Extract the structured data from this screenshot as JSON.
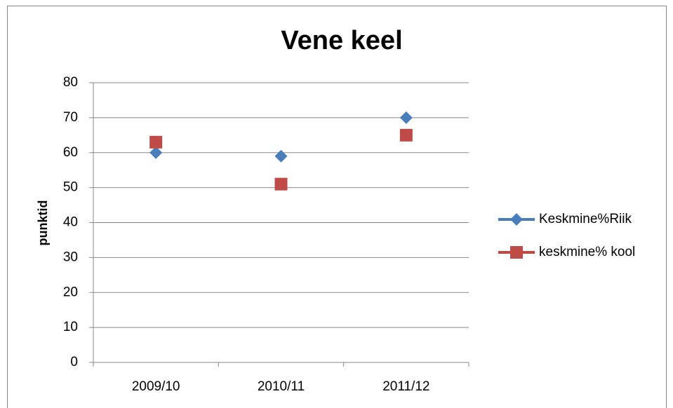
{
  "chart_data": {
    "type": "line",
    "title": "Vene keel",
    "y_label": "punktid",
    "categories": [
      "2009/10",
      "2010/11",
      "2011/12"
    ],
    "series": [
      {
        "name": "Keskmine%Riik",
        "color": "#4a7ebb",
        "marker": "diamond",
        "values": [
          60,
          59,
          70
        ]
      },
      {
        "name": "keskmine% kool",
        "color": "#be4b48",
        "marker": "square",
        "values": [
          63,
          51,
          65
        ]
      }
    ],
    "ylim": [
      0,
      80
    ],
    "yticks": [
      0,
      10,
      20,
      30,
      40,
      50,
      60,
      70,
      80
    ],
    "grid": true,
    "legend": "right"
  }
}
